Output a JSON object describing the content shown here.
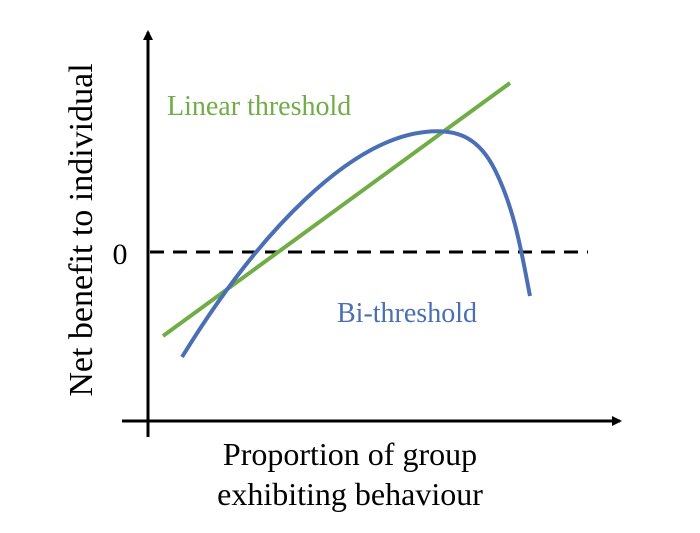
{
  "diagram": {
    "y_axis_label": "Net benefit to individual",
    "x_axis_label_line1": "Proportion of group",
    "x_axis_label_line2": "exhibiting behaviour",
    "zero_label": "0",
    "linear_label": "Linear threshold",
    "bithreshold_label": "Bi-threshold"
  },
  "colors": {
    "axis": "#000000",
    "zero_line": "#000000",
    "linear": "#70ad47",
    "bithreshold": "#4a6fb5"
  }
}
